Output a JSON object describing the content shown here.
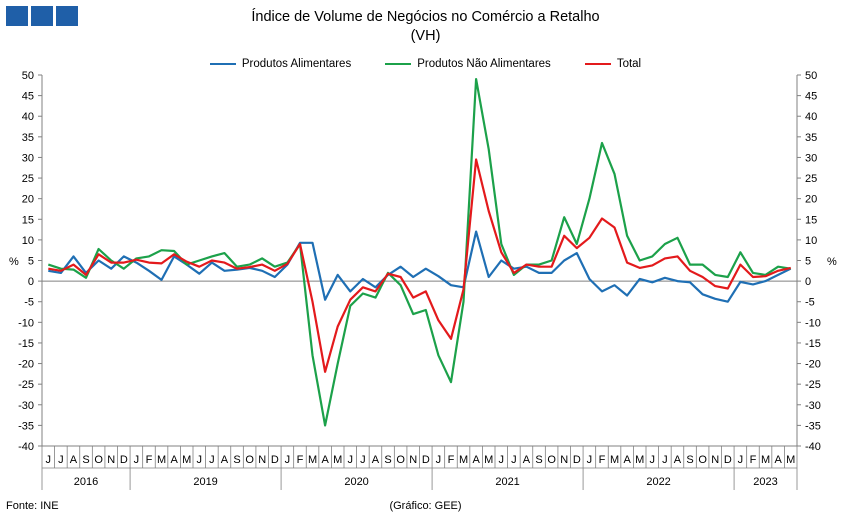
{
  "logo": {
    "icon": "ine-logo-icon"
  },
  "chart_data": {
    "type": "line",
    "title": "Índice de Volume de Negócios no Comércio a Retalho",
    "subtitle": "(VH)",
    "ylabel_left": "%",
    "ylabel_right": "%",
    "ylim": [
      -40,
      50
    ],
    "yticks": [
      -40,
      -35,
      -30,
      -25,
      -20,
      -15,
      -10,
      -5,
      0,
      5,
      10,
      15,
      20,
      25,
      30,
      35,
      40,
      45,
      50
    ],
    "grid": false,
    "legend_position": "top-center",
    "x": [
      "J",
      "J",
      "A",
      "S",
      "O",
      "N",
      "D",
      "J",
      "F",
      "M",
      "A",
      "M",
      "J",
      "J",
      "A",
      "S",
      "O",
      "N",
      "D",
      "J",
      "F",
      "M",
      "A",
      "M",
      "J",
      "J",
      "A",
      "S",
      "O",
      "N",
      "D",
      "J",
      "F",
      "M",
      "A",
      "M",
      "J",
      "J",
      "A",
      "S",
      "O",
      "N",
      "D",
      "J",
      "F",
      "M",
      "A",
      "M",
      "J",
      "J",
      "A",
      "S",
      "O",
      "N",
      "D",
      "J",
      "F",
      "M",
      "A",
      "M"
    ],
    "years": [
      {
        "label": "2016",
        "start": 0,
        "count": 7
      },
      {
        "label": "2019",
        "start": 7,
        "count": 12
      },
      {
        "label": "2020",
        "start": 19,
        "count": 12
      },
      {
        "label": "2021",
        "start": 31,
        "count": 12
      },
      {
        "label": "2022",
        "start": 43,
        "count": 12
      },
      {
        "label": "2023",
        "start": 55,
        "count": 5
      }
    ],
    "series": [
      {
        "name": "Produtos Alimentares",
        "color": "#1f6fb4",
        "values": [
          2.5,
          2,
          6,
          2,
          5,
          3,
          6,
          4.5,
          2.5,
          0.3,
          6,
          4,
          1.8,
          4.5,
          2.5,
          2.8,
          3.2,
          2.5,
          1,
          4,
          9.3,
          9.3,
          -4.5,
          1.5,
          -2.5,
          0.5,
          -1.5,
          1.5,
          3.5,
          1,
          3,
          1.2,
          -1,
          -1.5,
          12,
          1,
          5,
          3,
          3.5,
          2,
          2,
          5,
          6.8,
          0.5,
          -2.5,
          -1,
          -3.5,
          0.5,
          -0.3,
          0.8,
          0,
          -0.3,
          -3.2,
          -4.3,
          -5,
          -0.2,
          -0.8,
          0,
          1.5,
          3
        ]
      },
      {
        "name": "Produtos Não Alimentares",
        "color": "#1ca14a",
        "values": [
          4,
          3,
          2.8,
          0.8,
          7.8,
          5,
          3,
          5.5,
          6,
          7.5,
          7.3,
          4,
          5,
          6,
          6.8,
          3.5,
          4,
          5.5,
          3.5,
          4.5,
          9,
          -18,
          -35,
          -20,
          -6,
          -3,
          -4,
          2,
          -1,
          -8,
          -7,
          -18,
          -24.5,
          -5,
          49,
          32,
          9,
          1.5,
          4,
          4,
          5,
          15.5,
          9,
          20,
          33.5,
          26,
          11,
          5,
          6,
          9,
          10.5,
          4,
          4,
          1.5,
          1,
          7,
          2,
          1.5,
          3.5,
          3
        ]
      },
      {
        "name": "Total",
        "color": "#e31a1c",
        "values": [
          3,
          2.5,
          4,
          1.5,
          6.5,
          4.5,
          4.5,
          5.2,
          4.5,
          4.3,
          6.5,
          4.7,
          3.5,
          5,
          4.5,
          3,
          3.4,
          4,
          2.5,
          4.2,
          9,
          -5,
          -22,
          -11,
          -4.5,
          -1.5,
          -2.5,
          1.8,
          1,
          -4,
          -2.5,
          -9.5,
          -14,
          -2,
          29.5,
          17,
          7,
          2,
          4,
          3.5,
          3.5,
          11,
          8,
          10.5,
          15.2,
          13,
          4.5,
          3.2,
          3.8,
          5.5,
          6,
          2.5,
          1,
          -1.2,
          -1.8,
          4,
          1,
          1.2,
          2.5,
          3.2
        ]
      }
    ]
  },
  "footer": {
    "source": "Fonte: INE",
    "credit": "(Gráfico: GEE)"
  }
}
